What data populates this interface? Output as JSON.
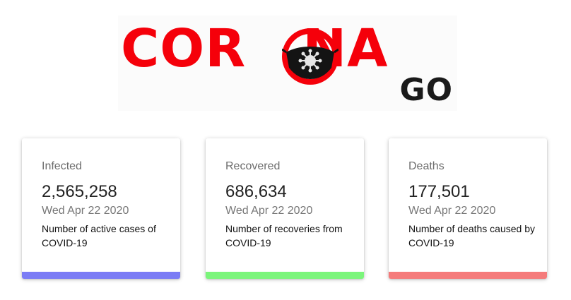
{
  "logo": {
    "word_left": "COR",
    "word_right": "NA",
    "sub": "GO",
    "color_red": "#f5000a",
    "color_dark": "#1a1a1a"
  },
  "cards": [
    {
      "title": "Infected",
      "count": "2,565,258",
      "date": "Wed Apr 22 2020",
      "description": "Number of active cases of COVID-19",
      "accent": "#7b7cf5"
    },
    {
      "title": "Recovered",
      "count": "686,634",
      "date": "Wed Apr 22 2020",
      "description": "Number of recoveries from COVID-19",
      "accent": "#7bf57b"
    },
    {
      "title": "Deaths",
      "count": "177,501",
      "date": "Wed Apr 22 2020",
      "description": "Number of deaths caused by COVID-19",
      "accent": "#f57b7b"
    }
  ]
}
